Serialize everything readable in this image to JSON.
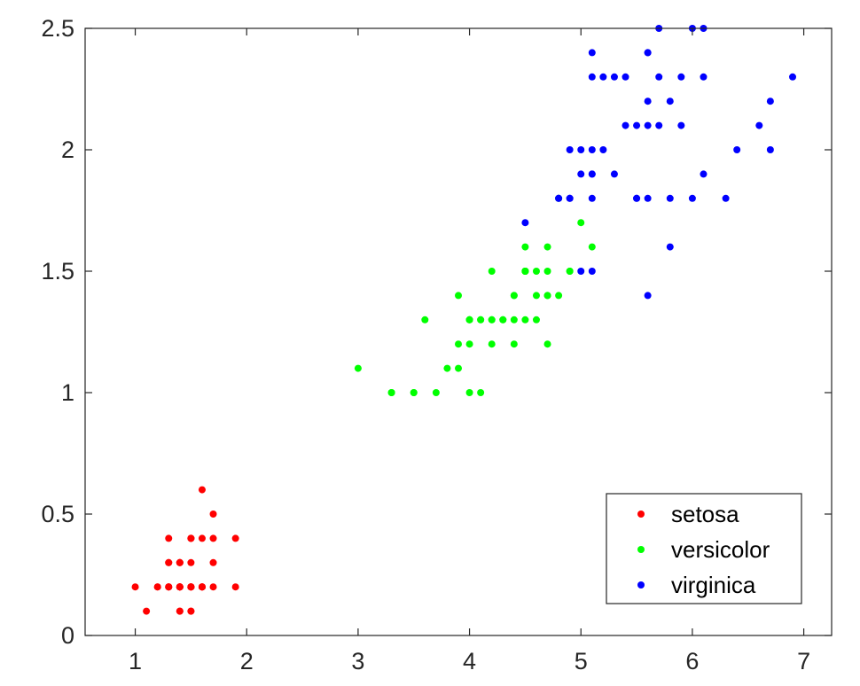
{
  "chart_data": {
    "type": "scatter",
    "title": "",
    "xlabel": "",
    "ylabel": "",
    "xlim": [
      0.55,
      7.25
    ],
    "ylim": [
      0,
      2.5
    ],
    "xticks": [
      "1",
      "2",
      "3",
      "4",
      "5",
      "6",
      "7"
    ],
    "yticks": [
      "0",
      "0.5",
      "1",
      "1.5",
      "2",
      "2.5"
    ],
    "grid": false,
    "legend_position": "bottom-right",
    "series": [
      {
        "name": "setosa",
        "color": "#ff0000",
        "points": [
          [
            1.4,
            0.2
          ],
          [
            1.4,
            0.2
          ],
          [
            1.3,
            0.2
          ],
          [
            1.5,
            0.2
          ],
          [
            1.4,
            0.2
          ],
          [
            1.7,
            0.4
          ],
          [
            1.4,
            0.3
          ],
          [
            1.5,
            0.2
          ],
          [
            1.4,
            0.2
          ],
          [
            1.5,
            0.1
          ],
          [
            1.5,
            0.2
          ],
          [
            1.6,
            0.2
          ],
          [
            1.4,
            0.1
          ],
          [
            1.1,
            0.1
          ],
          [
            1.2,
            0.2
          ],
          [
            1.5,
            0.4
          ],
          [
            1.3,
            0.4
          ],
          [
            1.4,
            0.3
          ],
          [
            1.7,
            0.3
          ],
          [
            1.5,
            0.3
          ],
          [
            1.7,
            0.2
          ],
          [
            1.5,
            0.4
          ],
          [
            1.0,
            0.2
          ],
          [
            1.7,
            0.5
          ],
          [
            1.9,
            0.2
          ],
          [
            1.6,
            0.2
          ],
          [
            1.6,
            0.4
          ],
          [
            1.5,
            0.2
          ],
          [
            1.4,
            0.2
          ],
          [
            1.6,
            0.2
          ],
          [
            1.6,
            0.2
          ],
          [
            1.5,
            0.4
          ],
          [
            1.5,
            0.1
          ],
          [
            1.4,
            0.2
          ],
          [
            1.5,
            0.2
          ],
          [
            1.2,
            0.2
          ],
          [
            1.3,
            0.2
          ],
          [
            1.4,
            0.1
          ],
          [
            1.3,
            0.2
          ],
          [
            1.5,
            0.2
          ],
          [
            1.3,
            0.3
          ],
          [
            1.3,
            0.3
          ],
          [
            1.3,
            0.2
          ],
          [
            1.6,
            0.6
          ],
          [
            1.9,
            0.4
          ],
          [
            1.4,
            0.3
          ],
          [
            1.6,
            0.2
          ],
          [
            1.4,
            0.2
          ],
          [
            1.5,
            0.2
          ],
          [
            1.4,
            0.2
          ]
        ]
      },
      {
        "name": "versicolor",
        "color": "#00ff00",
        "points": [
          [
            4.7,
            1.4
          ],
          [
            4.5,
            1.5
          ],
          [
            4.9,
            1.5
          ],
          [
            4.0,
            1.3
          ],
          [
            4.6,
            1.5
          ],
          [
            4.5,
            1.3
          ],
          [
            4.7,
            1.6
          ],
          [
            3.3,
            1.0
          ],
          [
            4.6,
            1.3
          ],
          [
            3.9,
            1.4
          ],
          [
            3.5,
            1.0
          ],
          [
            4.2,
            1.5
          ],
          [
            4.0,
            1.0
          ],
          [
            4.7,
            1.4
          ],
          [
            3.6,
            1.3
          ],
          [
            4.4,
            1.4
          ],
          [
            4.5,
            1.5
          ],
          [
            4.1,
            1.0
          ],
          [
            4.5,
            1.5
          ],
          [
            3.9,
            1.1
          ],
          [
            4.8,
            1.8
          ],
          [
            4.0,
            1.3
          ],
          [
            4.9,
            1.5
          ],
          [
            4.7,
            1.2
          ],
          [
            4.3,
            1.3
          ],
          [
            4.4,
            1.4
          ],
          [
            4.8,
            1.4
          ],
          [
            5.0,
            1.7
          ],
          [
            4.5,
            1.5
          ],
          [
            3.5,
            1.0
          ],
          [
            3.8,
            1.1
          ],
          [
            3.7,
            1.0
          ],
          [
            3.9,
            1.2
          ],
          [
            5.1,
            1.6
          ],
          [
            4.5,
            1.5
          ],
          [
            4.5,
            1.6
          ],
          [
            4.7,
            1.5
          ],
          [
            4.4,
            1.3
          ],
          [
            4.1,
            1.3
          ],
          [
            4.0,
            1.3
          ],
          [
            4.4,
            1.2
          ],
          [
            4.6,
            1.4
          ],
          [
            4.0,
            1.2
          ],
          [
            3.3,
            1.0
          ],
          [
            4.2,
            1.3
          ],
          [
            4.2,
            1.2
          ],
          [
            4.2,
            1.3
          ],
          [
            4.3,
            1.3
          ],
          [
            3.0,
            1.1
          ],
          [
            4.1,
            1.3
          ]
        ]
      },
      {
        "name": "virginica",
        "color": "#0000ff",
        "points": [
          [
            6.0,
            2.5
          ],
          [
            5.1,
            1.9
          ],
          [
            5.9,
            2.1
          ],
          [
            5.6,
            1.8
          ],
          [
            5.8,
            2.2
          ],
          [
            6.6,
            2.1
          ],
          [
            4.5,
            1.7
          ],
          [
            6.3,
            1.8
          ],
          [
            5.8,
            1.8
          ],
          [
            6.1,
            2.5
          ],
          [
            5.1,
            2.0
          ],
          [
            5.3,
            1.9
          ],
          [
            5.5,
            2.1
          ],
          [
            5.0,
            2.0
          ],
          [
            5.1,
            2.4
          ],
          [
            5.3,
            2.3
          ],
          [
            5.5,
            1.8
          ],
          [
            6.7,
            2.2
          ],
          [
            6.9,
            2.3
          ],
          [
            5.0,
            1.5
          ],
          [
            5.7,
            2.3
          ],
          [
            4.9,
            2.0
          ],
          [
            6.7,
            2.0
          ],
          [
            4.9,
            1.8
          ],
          [
            5.7,
            2.1
          ],
          [
            6.0,
            1.8
          ],
          [
            4.8,
            1.8
          ],
          [
            4.9,
            1.8
          ],
          [
            5.6,
            2.1
          ],
          [
            5.8,
            1.6
          ],
          [
            6.1,
            1.9
          ],
          [
            6.4,
            2.0
          ],
          [
            5.6,
            2.2
          ],
          [
            5.1,
            1.5
          ],
          [
            5.6,
            1.4
          ],
          [
            6.1,
            2.3
          ],
          [
            5.6,
            2.4
          ],
          [
            5.5,
            1.8
          ],
          [
            4.8,
            1.8
          ],
          [
            5.4,
            2.1
          ],
          [
            5.6,
            2.4
          ],
          [
            5.1,
            2.3
          ],
          [
            5.1,
            1.9
          ],
          [
            5.9,
            2.3
          ],
          [
            5.7,
            2.5
          ],
          [
            5.2,
            2.3
          ],
          [
            5.0,
            1.9
          ],
          [
            5.2,
            2.0
          ],
          [
            5.4,
            2.3
          ],
          [
            5.1,
            1.8
          ]
        ]
      }
    ]
  }
}
